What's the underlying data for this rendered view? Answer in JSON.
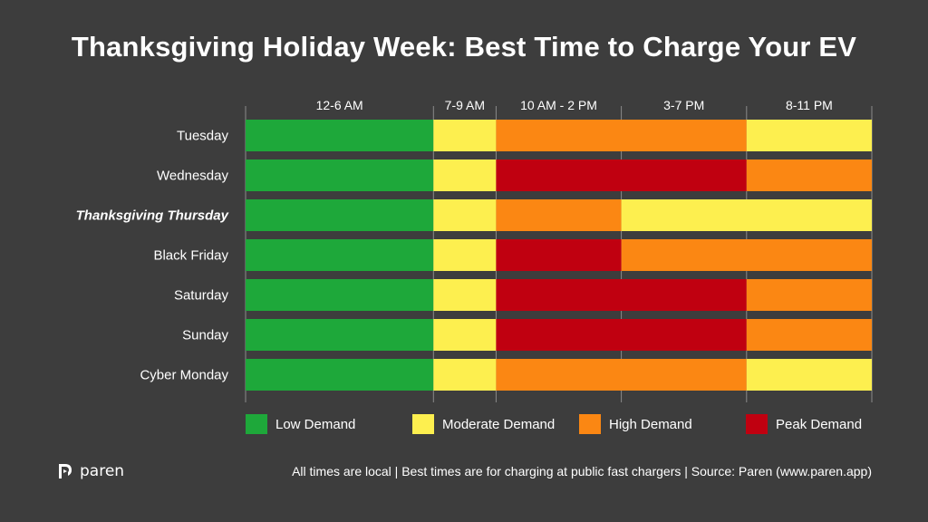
{
  "title": "Thanksgiving Holiday Week: Best Time to Charge Your EV",
  "colors": {
    "background": "#3d3d3d",
    "low": "#1ea83a",
    "moderate": "#fdef4f",
    "high": "#fb8713",
    "peak": "#c00010",
    "grid": "#8a8a8a"
  },
  "chart_data": {
    "type": "heatmap",
    "title": "Thanksgiving Holiday Week: Best Time to Charge Your EV",
    "columns": [
      {
        "label": "12-6 AM",
        "hours": 6
      },
      {
        "label": "7-9 AM",
        "hours": 2
      },
      {
        "label": "10 AM - 2 PM",
        "hours": 4
      },
      {
        "label": "3-7 PM",
        "hours": 4
      },
      {
        "label": "8-11 PM",
        "hours": 4
      }
    ],
    "rows": [
      {
        "day": "Tuesday",
        "emphasis": false,
        "levels": [
          "low",
          "moderate",
          "high",
          "high",
          "moderate"
        ]
      },
      {
        "day": "Wednesday",
        "emphasis": false,
        "levels": [
          "low",
          "moderate",
          "peak",
          "peak",
          "high"
        ]
      },
      {
        "day": "Thanksgiving Thursday",
        "emphasis": true,
        "levels": [
          "low",
          "moderate",
          "high",
          "moderate",
          "moderate"
        ]
      },
      {
        "day": "Black Friday",
        "emphasis": false,
        "levels": [
          "low",
          "moderate",
          "peak",
          "high",
          "high"
        ]
      },
      {
        "day": "Saturday",
        "emphasis": false,
        "levels": [
          "low",
          "moderate",
          "peak",
          "peak",
          "high"
        ]
      },
      {
        "day": "Sunday",
        "emphasis": false,
        "levels": [
          "low",
          "moderate",
          "peak",
          "peak",
          "high"
        ]
      },
      {
        "day": "Cyber Monday",
        "emphasis": false,
        "levels": [
          "low",
          "moderate",
          "high",
          "high",
          "moderate"
        ]
      }
    ],
    "legend": [
      {
        "key": "low",
        "label": "Low Demand"
      },
      {
        "key": "moderate",
        "label": "Moderate Demand"
      },
      {
        "key": "high",
        "label": "High Demand"
      },
      {
        "key": "peak",
        "label": "Peak Demand"
      }
    ]
  },
  "footer": "All times are local | Best times are for charging at public fast chargers | Source: Paren (www.paren.app)",
  "brand": {
    "name": "paren",
    "icon": "paren-logo-icon"
  }
}
